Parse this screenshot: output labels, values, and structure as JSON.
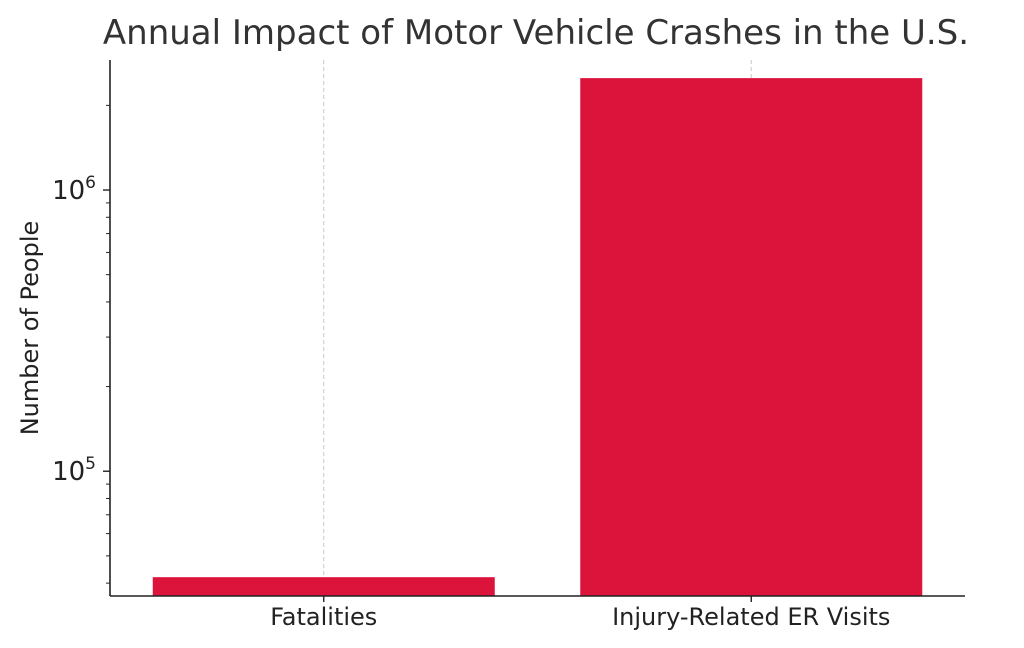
{
  "chart_data": {
    "type": "bar",
    "title": "Annual Impact of Motor Vehicle Crashes in the U.S.",
    "xlabel": "",
    "ylabel": "Number of People",
    "yscale": "log",
    "categories": [
      "Fatalities",
      "Injury-Related ER Visits"
    ],
    "values": [
      42000,
      2500000
    ],
    "ylim": [
      36000,
      2900000
    ],
    "major_ticks": [
      {
        "value": 100000,
        "base": "10",
        "exp": "5"
      },
      {
        "value": 1000000,
        "base": "10",
        "exp": "6"
      }
    ],
    "grid": "vertical-dashed",
    "bar_color": "#DC143C"
  }
}
